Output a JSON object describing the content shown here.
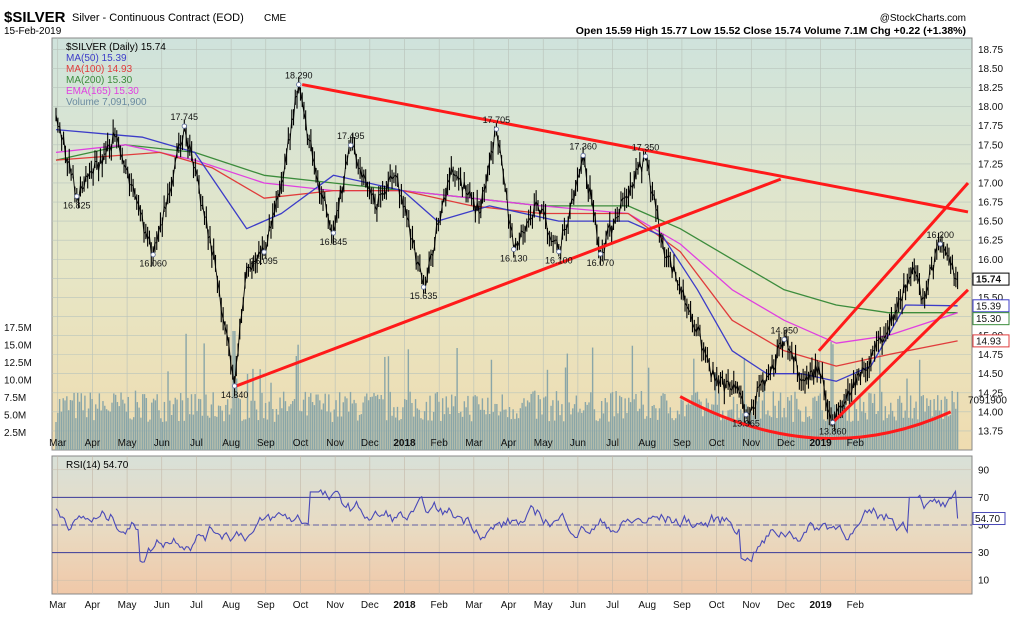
{
  "header": {
    "symbol": "$SILVER",
    "description": "Silver - Continuous Contract (EOD)",
    "exchange": "CME",
    "date": "15-Feb-2019",
    "watermark": "@StockCharts.com",
    "quote": "Open 15.59  High 15.77  Low 15.52  Close 15.74  Volume 7.1M  Chg +0.22 (+1.38%)"
  },
  "legend": {
    "main": "$SILVER (Daily) 15.74",
    "ma50": "MA(50) 15.39",
    "ma100": "MA(100) 14.93",
    "ma200": "MA(200) 15.30",
    "ema165": "EMA(165) 15.30",
    "volume": "Volume 7,091,900",
    "rsi": "RSI(14) 54.70"
  },
  "colors": {
    "price": "#000000",
    "ma50": "#3c3cc8",
    "ma100": "#e03c3c",
    "ma200": "#3c8c3c",
    "ema165": "#e040e0",
    "volume": "#8aa6a8",
    "trendline": "#ff1a1a",
    "rsi": "#4a4ab8"
  },
  "chart_data": [
    {
      "type": "line",
      "title": "$SILVER (Daily)",
      "ylim": [
        13.5,
        18.9
      ],
      "yticks": [
        "18.75",
        "18.50",
        "18.25",
        "18.00",
        "17.75",
        "17.50",
        "17.25",
        "17.00",
        "16.75",
        "16.50",
        "16.25",
        "16.00",
        "15.75",
        "15.50",
        "15.25",
        "15.00",
        "14.75",
        "14.50",
        "14.25",
        "14.00",
        "13.75"
      ],
      "xticks": [
        "Mar",
        "Apr",
        "May",
        "Jun",
        "Jul",
        "Aug",
        "Sep",
        "Oct",
        "Nov",
        "Dec",
        "2018",
        "Feb",
        "Mar",
        "Apr",
        "May",
        "Jun",
        "Jul",
        "Aug",
        "Sep",
        "Oct",
        "Nov",
        "Dec",
        "2019",
        "Feb"
      ],
      "pivots": [
        {
          "t": 0,
          "v": 17.9
        },
        {
          "t": 0.6,
          "v": 16.825,
          "label": "16.825"
        },
        {
          "t": 1.7,
          "v": 17.6
        },
        {
          "t": 2.8,
          "v": 16.06,
          "label": "16.060"
        },
        {
          "t": 3.7,
          "v": 17.745,
          "label": "17.745"
        },
        {
          "t": 4.6,
          "v": 15.9
        },
        {
          "t": 5.15,
          "v": 14.34,
          "label": "14.340"
        },
        {
          "t": 5.5,
          "v": 15.9
        },
        {
          "t": 6.0,
          "v": 16.095,
          "label": "16.095"
        },
        {
          "t": 6.5,
          "v": 17.0
        },
        {
          "t": 7.0,
          "v": 18.29,
          "label": "18.290"
        },
        {
          "t": 7.5,
          "v": 17.1
        },
        {
          "t": 8.0,
          "v": 16.345,
          "label": "16.345"
        },
        {
          "t": 8.5,
          "v": 17.495,
          "label": "17.495"
        },
        {
          "t": 9.2,
          "v": 16.7
        },
        {
          "t": 9.8,
          "v": 17.1
        },
        {
          "t": 10.6,
          "v": 15.635,
          "label": "15.635"
        },
        {
          "t": 11.4,
          "v": 17.2
        },
        {
          "t": 12.2,
          "v": 16.6
        },
        {
          "t": 12.7,
          "v": 17.705,
          "label": "17.705"
        },
        {
          "t": 13.2,
          "v": 16.13,
          "label": "16.130"
        },
        {
          "t": 13.9,
          "v": 16.7
        },
        {
          "t": 14.5,
          "v": 16.1,
          "label": "16.100"
        },
        {
          "t": 15.2,
          "v": 17.36,
          "label": "17.360"
        },
        {
          "t": 15.7,
          "v": 16.07,
          "label": "16.070"
        },
        {
          "t": 16.4,
          "v": 16.8
        },
        {
          "t": 17.0,
          "v": 17.35,
          "label": "17.350"
        },
        {
          "t": 17.5,
          "v": 16.2
        },
        {
          "t": 18.3,
          "v": 15.3
        },
        {
          "t": 19.0,
          "v": 14.4
        },
        {
          "t": 19.6,
          "v": 14.3
        },
        {
          "t": 19.9,
          "v": 13.965,
          "label": "13.965"
        },
        {
          "t": 20.6,
          "v": 14.5
        },
        {
          "t": 21.0,
          "v": 14.95,
          "label": "14.950"
        },
        {
          "t": 21.6,
          "v": 14.4
        },
        {
          "t": 22.0,
          "v": 14.6
        },
        {
          "t": 22.4,
          "v": 13.86,
          "label": "13.860"
        },
        {
          "t": 23.0,
          "v": 14.4
        },
        {
          "t": 23.5,
          "v": 14.7
        },
        {
          "t": 24.2,
          "v": 15.3
        },
        {
          "t": 24.7,
          "v": 15.9
        },
        {
          "t": 25.0,
          "v": 15.5
        },
        {
          "t": 25.5,
          "v": 16.2,
          "label": "16.200"
        },
        {
          "t": 26.0,
          "v": 15.74
        }
      ],
      "ma50": [
        [
          0,
          17.7
        ],
        [
          2.5,
          17.6
        ],
        [
          4,
          17.4
        ],
        [
          5.5,
          16.4
        ],
        [
          6.5,
          16.6
        ],
        [
          8,
          17.1
        ],
        [
          10,
          16.9
        ],
        [
          11,
          16.5
        ],
        [
          12.5,
          16.7
        ],
        [
          14.5,
          16.5
        ],
        [
          16.5,
          16.5
        ],
        [
          17.5,
          16.3
        ],
        [
          18.5,
          15.6
        ],
        [
          19.5,
          14.8
        ],
        [
          20.5,
          14.5
        ],
        [
          21.5,
          14.5
        ],
        [
          22.5,
          14.4
        ],
        [
          23.5,
          14.6
        ],
        [
          24.5,
          15.4
        ],
        [
          26,
          15.39
        ]
      ],
      "ma100": [
        [
          0,
          17.3
        ],
        [
          3,
          17.4
        ],
        [
          4.5,
          17.2
        ],
        [
          6,
          16.8
        ],
        [
          8,
          16.9
        ],
        [
          10,
          16.9
        ],
        [
          12,
          16.7
        ],
        [
          14,
          16.6
        ],
        [
          16.5,
          16.6
        ],
        [
          18,
          16.1
        ],
        [
          19.5,
          15.2
        ],
        [
          21,
          14.8
        ],
        [
          22.5,
          14.6
        ],
        [
          24,
          14.75
        ],
        [
          26,
          14.93
        ]
      ],
      "ma200": [
        [
          0,
          17.3
        ],
        [
          2,
          17.5
        ],
        [
          4,
          17.4
        ],
        [
          6,
          17.1
        ],
        [
          8,
          17.0
        ],
        [
          10,
          16.9
        ],
        [
          12,
          16.8
        ],
        [
          14,
          16.7
        ],
        [
          16.5,
          16.7
        ],
        [
          18,
          16.4
        ],
        [
          19.5,
          16.0
        ],
        [
          21,
          15.6
        ],
        [
          22.5,
          15.4
        ],
        [
          24,
          15.3
        ],
        [
          26,
          15.3
        ]
      ],
      "ema165": [
        [
          0,
          17.4
        ],
        [
          2,
          17.5
        ],
        [
          4,
          17.3
        ],
        [
          6,
          17.0
        ],
        [
          8,
          16.9
        ],
        [
          10,
          16.9
        ],
        [
          12,
          16.8
        ],
        [
          14,
          16.7
        ],
        [
          16.5,
          16.6
        ],
        [
          18,
          16.2
        ],
        [
          19.5,
          15.6
        ],
        [
          21,
          15.2
        ],
        [
          22.5,
          14.9
        ],
        [
          24,
          15.0
        ],
        [
          26,
          15.3
        ]
      ],
      "price_tags": [
        {
          "v": 15.74,
          "label": "15.74"
        },
        {
          "v": 15.39,
          "label": "15.39"
        },
        {
          "v": 15.3,
          "label": "15.30"
        },
        {
          "v": 14.93,
          "label": "14.93"
        }
      ],
      "trendlines": [
        {
          "from": [
            7.1,
            18.29
          ],
          "to": [
            26.3,
            16.62
          ]
        },
        {
          "from": [
            5.2,
            14.34
          ],
          "to": [
            20.9,
            17.05
          ]
        },
        {
          "from": [
            22.0,
            14.8
          ],
          "to": [
            26.3,
            17.0
          ]
        },
        {
          "from": [
            22.4,
            13.86
          ],
          "to": [
            26.3,
            15.6
          ]
        }
      ],
      "arc": {
        "from": [
          18.0,
          14.2
        ],
        "mid": [
          22.0,
          13.5
        ],
        "to": [
          25.8,
          14.0
        ]
      }
    },
    {
      "type": "bar",
      "title": "Volume",
      "ylim": [
        0,
        20
      ],
      "yticks": [
        "17.5M",
        "15.0M",
        "12.5M",
        "10.0M",
        "7.5M",
        "5.0M",
        "2.5M"
      ],
      "last_label": "7091900",
      "last_value": 7.09
    },
    {
      "type": "line",
      "title": "RSI(14)",
      "ylim": [
        0,
        100
      ],
      "yticks": [
        "90",
        "70",
        "50",
        "30",
        "10"
      ],
      "overbought": 70,
      "oversold": 30,
      "last_label": "54.70",
      "last_value": 54.7
    }
  ]
}
